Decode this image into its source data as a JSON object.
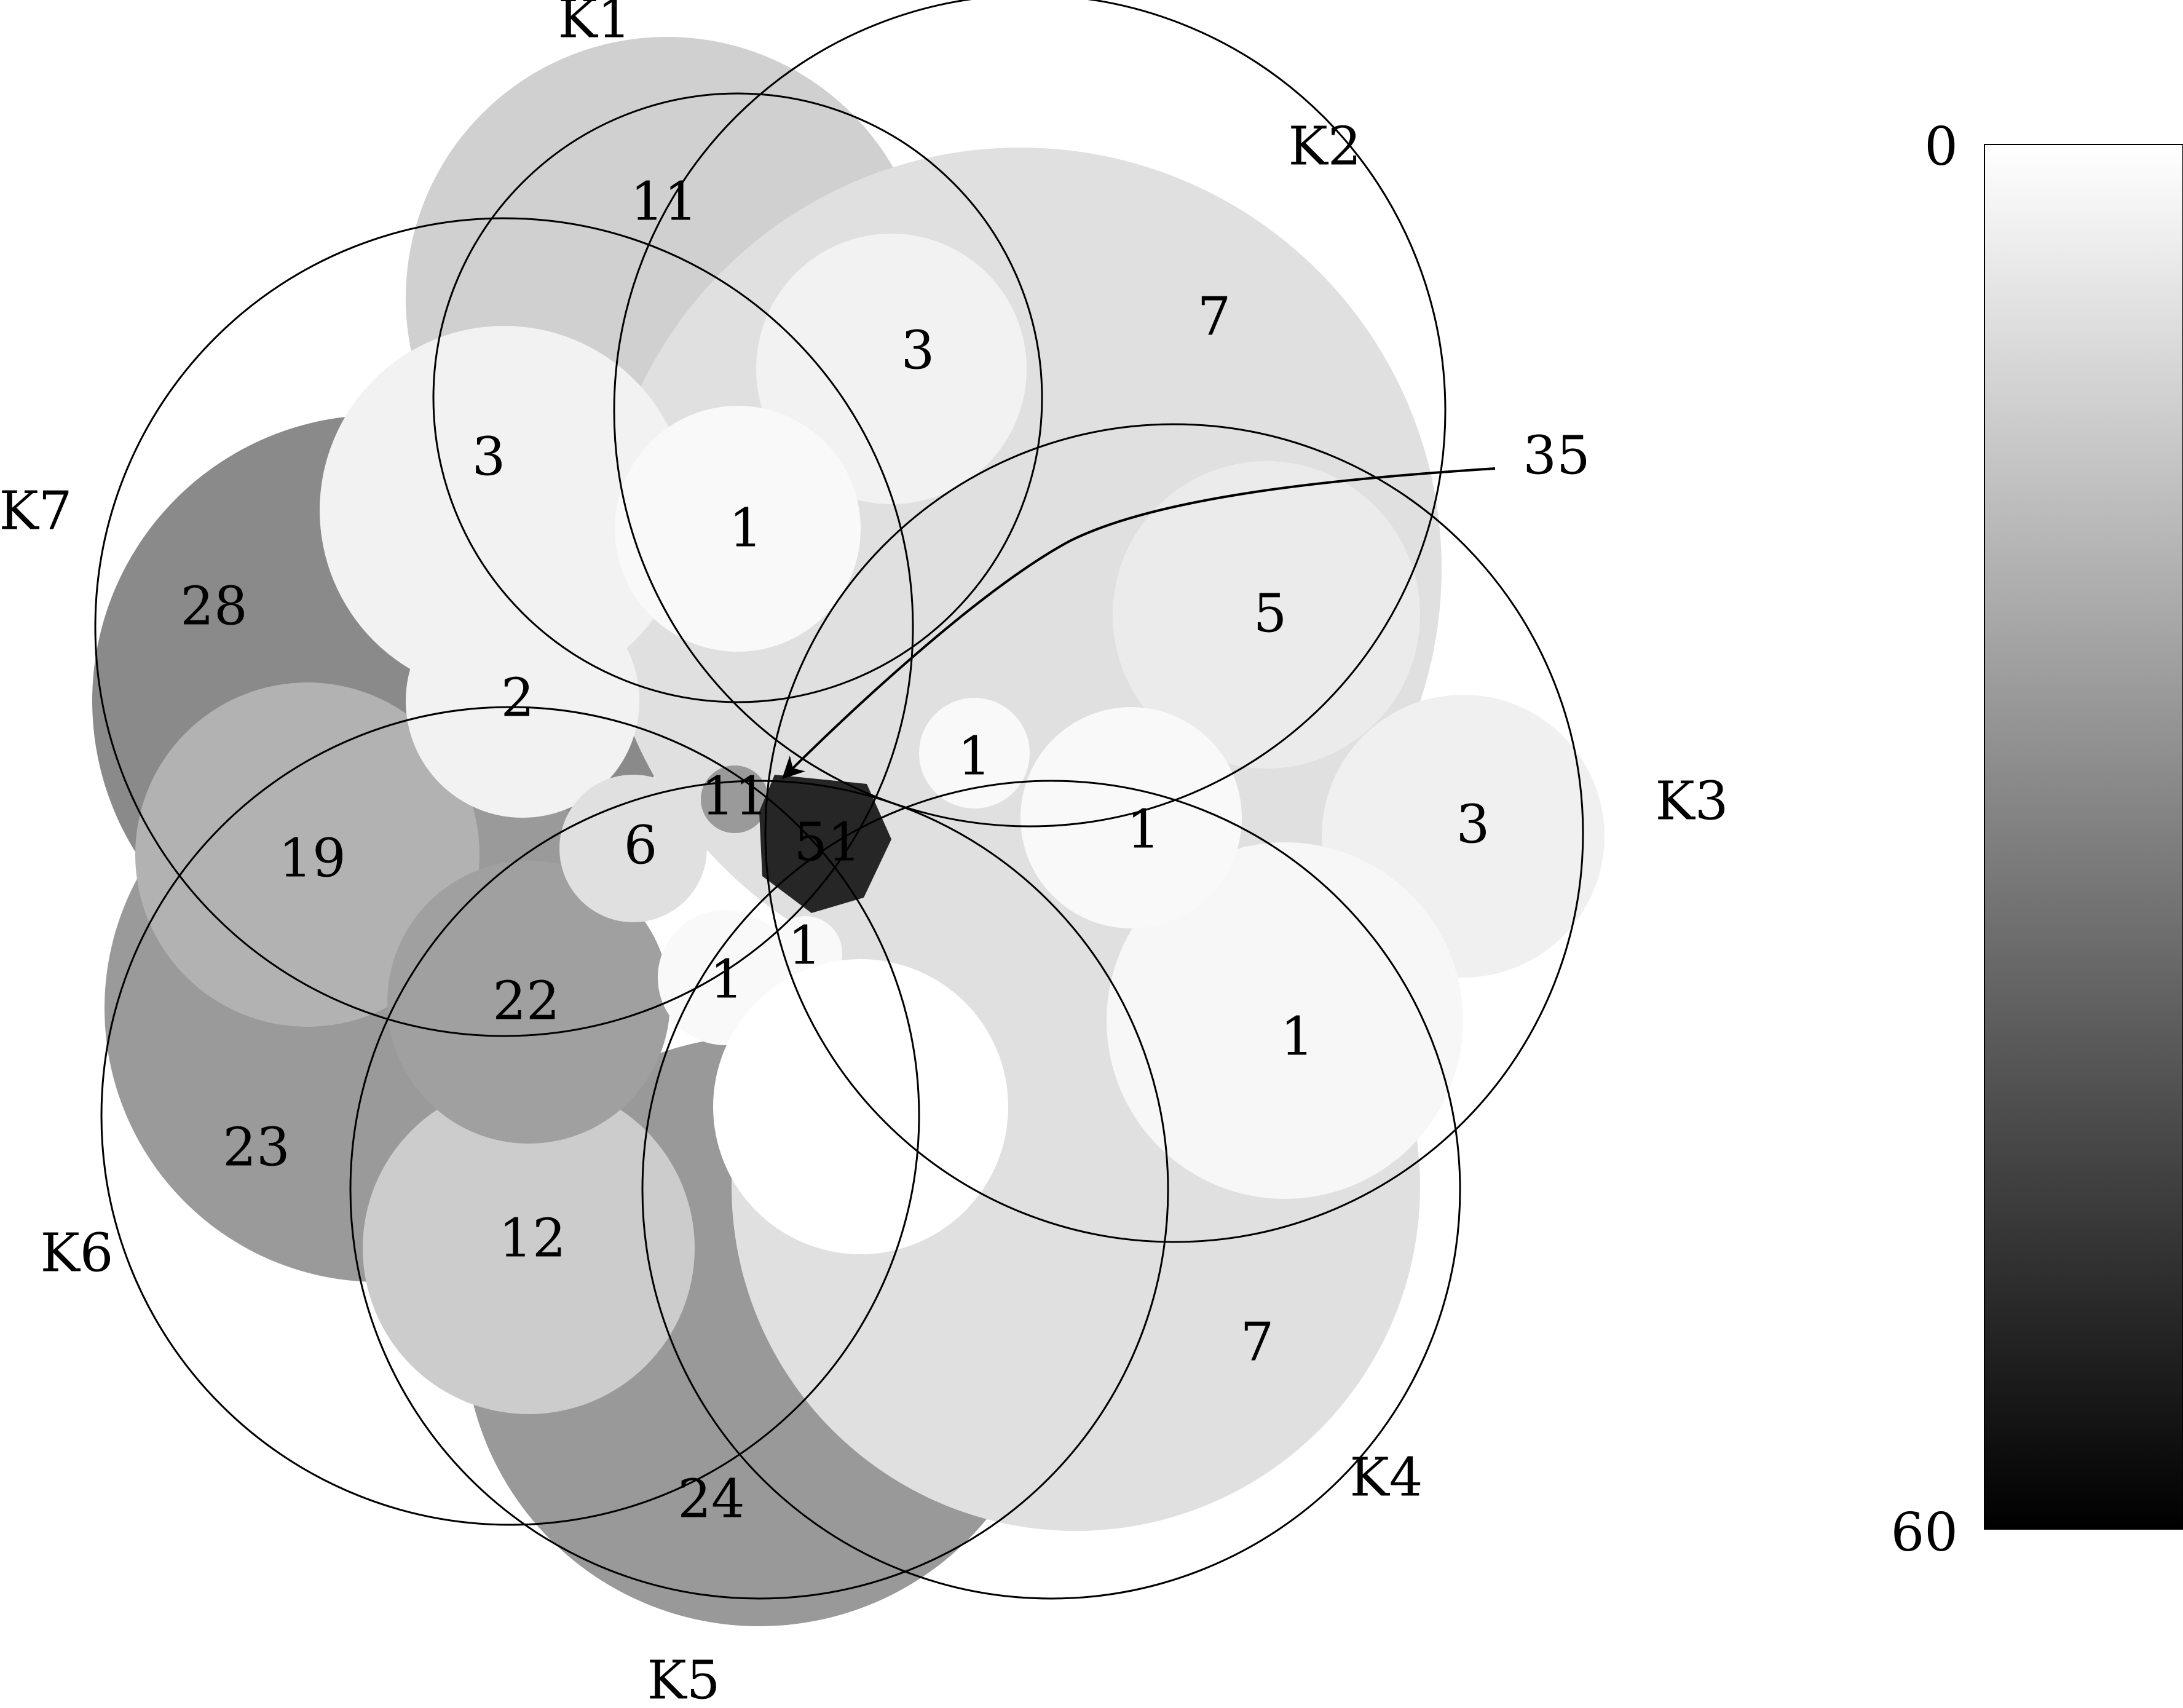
{
  "sets": [
    {
      "id": "k1",
      "label": "K1"
    },
    {
      "id": "k2",
      "label": "K2"
    },
    {
      "id": "k3",
      "label": "K3"
    },
    {
      "id": "k4",
      "label": "K4"
    },
    {
      "id": "k5",
      "label": "K5"
    },
    {
      "id": "k6",
      "label": "K6"
    },
    {
      "id": "k7",
      "label": "K7"
    }
  ],
  "regions": {
    "k1_only": "11",
    "k2_only": "7",
    "k3_only": "3",
    "k4_only": "7",
    "k5_only": "24",
    "k6_only": "23",
    "k7_only": "28",
    "k1_k2": "3",
    "k2_k3": "5",
    "k3_k4": "1",
    "k4_k5": "",
    "k5_k6": "12",
    "k6_k7": "19",
    "k7_k1": "3",
    "k1_k2_k7": "1",
    "k1_k6_k7": "2",
    "k5_k6_k7": "22",
    "k1_k5_k6_k7": "6",
    "k1_k5_k7": "11",
    "k2_k3_k4": "1",
    "k1_k2_k3": "1",
    "k3_k4_k5": "1",
    "k4_k5_k6": "1",
    "all": "51"
  },
  "callout": {
    "value": "35"
  },
  "colorbar": {
    "min_label": "0",
    "max_label": "60"
  },
  "colors": {
    "all_text": "#ff0000",
    "all_fill": "#262626"
  }
}
